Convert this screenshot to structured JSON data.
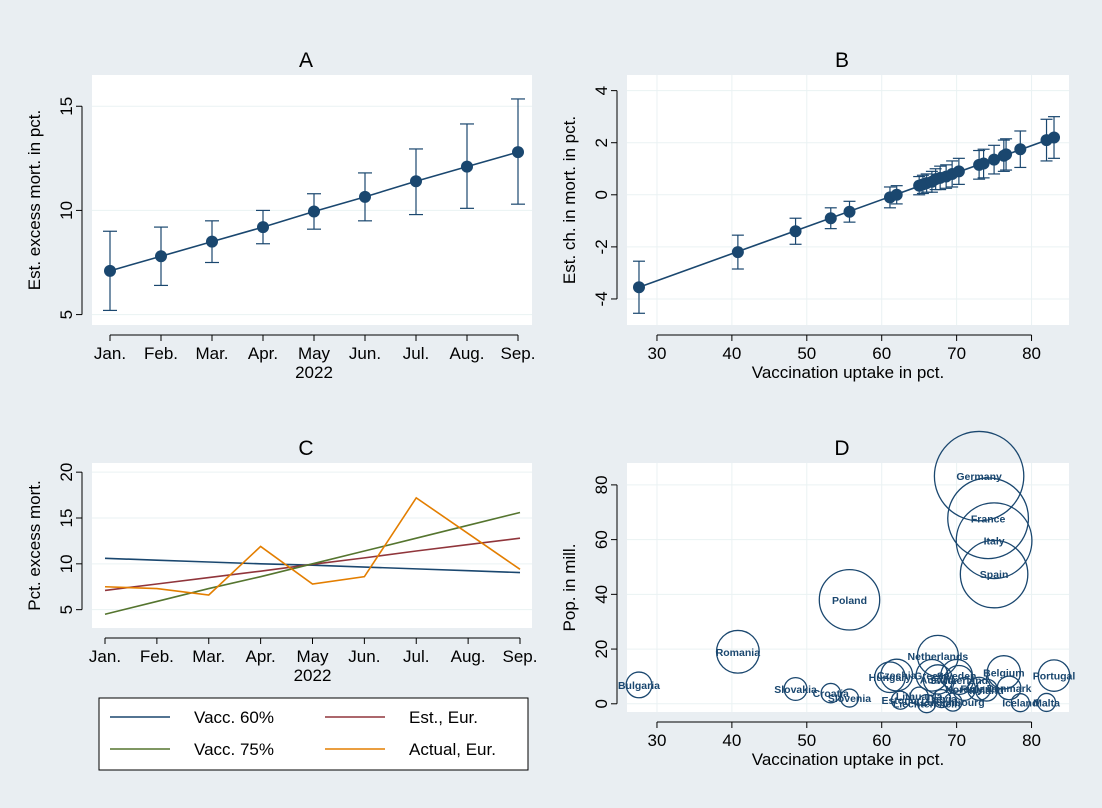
{
  "colors": {
    "background": "#e9eef2",
    "plot_bg": "#ffffff",
    "navy": "#1a476f",
    "maroon": "#90353b",
    "olive": "#55752f",
    "orange": "#e37e00",
    "axis": "#000000"
  },
  "chart_data": [
    {
      "id": "A",
      "type": "line",
      "title": "A",
      "xlabel": "2022",
      "ylabel": "Est. excess mort. in pct.",
      "categories": [
        "Jan.",
        "Feb.",
        "Mar.",
        "Apr.",
        "May",
        "Jun.",
        "Jul.",
        "Aug.",
        "Sep."
      ],
      "values": [
        7.1,
        7.8,
        8.5,
        9.2,
        9.95,
        10.65,
        11.4,
        12.1,
        12.8
      ],
      "ci_low": [
        5.2,
        6.4,
        7.5,
        8.4,
        9.1,
        9.5,
        9.8,
        10.1,
        10.3
      ],
      "ci_high": [
        9.0,
        9.2,
        9.5,
        10.0,
        10.8,
        11.8,
        12.95,
        14.15,
        15.35
      ],
      "ylim": [
        4.5,
        16.5
      ],
      "yticks": [
        5,
        10,
        15
      ],
      "grid": true
    },
    {
      "id": "B",
      "type": "scatter",
      "title": "B",
      "xlabel": "Vaccination uptake in pct.",
      "ylabel": "Est. ch. in mort. in pct.",
      "x": [
        27.6,
        40.8,
        48.5,
        53.2,
        55.7,
        61.1,
        62.0,
        65.0,
        65.5,
        66.0,
        66.7,
        67.2,
        67.8,
        68.6,
        69.4,
        70.3,
        73.0,
        73.6,
        75.0,
        76.3,
        76.6,
        78.5,
        82.0,
        83.0
      ],
      "values": [
        -3.55,
        -2.2,
        -1.4,
        -0.9,
        -0.65,
        -0.1,
        0.0,
        0.35,
        0.4,
        0.45,
        0.5,
        0.6,
        0.65,
        0.7,
        0.8,
        0.9,
        1.15,
        1.2,
        1.35,
        1.5,
        1.55,
        1.75,
        2.1,
        2.2
      ],
      "ci_low": [
        -4.55,
        -2.85,
        -1.9,
        -1.3,
        -1.05,
        -0.5,
        -0.35,
        0.0,
        0.05,
        0.1,
        0.1,
        0.2,
        0.2,
        0.25,
        0.3,
        0.4,
        0.6,
        0.65,
        0.8,
        0.9,
        0.95,
        1.05,
        1.3,
        1.4
      ],
      "ci_high": [
        -2.55,
        -1.55,
        -0.9,
        -0.5,
        -0.25,
        0.3,
        0.35,
        0.7,
        0.75,
        0.8,
        0.9,
        1.0,
        1.1,
        1.15,
        1.3,
        1.4,
        1.7,
        1.75,
        1.9,
        2.1,
        2.15,
        2.45,
        2.9,
        3.0
      ],
      "fit": [
        [
          27.6,
          -3.55
        ],
        [
          83.0,
          2.2
        ]
      ],
      "xlim": [
        26,
        85
      ],
      "ylim": [
        -5,
        4.6
      ],
      "xticks": [
        30,
        40,
        50,
        60,
        70,
        80
      ],
      "yticks": [
        -4,
        -2,
        0,
        2,
        4
      ],
      "grid": true
    },
    {
      "id": "C",
      "type": "line",
      "title": "C",
      "xlabel": "2022",
      "ylabel": "Pct. excess mort.",
      "categories": [
        "Jan.",
        "Feb.",
        "Mar.",
        "Apr.",
        "May",
        "Jun.",
        "Jul.",
        "Aug.",
        "Sep."
      ],
      "series": [
        {
          "name": "Vacc. 60%",
          "color": "#1a476f",
          "values": [
            10.6,
            10.4,
            10.2,
            10.0,
            9.85,
            9.65,
            9.45,
            9.25,
            9.05
          ]
        },
        {
          "name": "Est., Eur.",
          "color": "#90353b",
          "values": [
            7.1,
            7.8,
            8.5,
            9.2,
            9.95,
            10.65,
            11.4,
            12.1,
            12.8
          ]
        },
        {
          "name": "Vacc. 75%",
          "color": "#55752f",
          "values": [
            4.5,
            5.9,
            7.3,
            8.6,
            10.0,
            11.4,
            12.8,
            14.2,
            15.6
          ]
        },
        {
          "name": "Actual, Eur.",
          "color": "#e37e00",
          "values": [
            7.5,
            7.3,
            6.6,
            11.9,
            7.8,
            8.6,
            17.2,
            13.3,
            9.4
          ]
        }
      ],
      "ylim": [
        3,
        21
      ],
      "yticks": [
        5,
        10,
        15,
        20
      ],
      "grid": true,
      "legend_position": "bottom"
    },
    {
      "id": "D",
      "type": "scatter",
      "title": "D",
      "xlabel": "Vaccination uptake in pct.",
      "ylabel": "Pop. in mill.",
      "xlim": [
        26,
        85
      ],
      "ylim": [
        -3,
        88
      ],
      "xticks": [
        30,
        40,
        50,
        60,
        70,
        80
      ],
      "yticks": [
        0,
        20,
        40,
        60,
        80
      ],
      "grid": true,
      "points": [
        {
          "label": "Bulgaria",
          "x": 27.6,
          "y": 6.9
        },
        {
          "label": "Romania",
          "x": 40.8,
          "y": 19.0
        },
        {
          "label": "Slovakia",
          "x": 48.5,
          "y": 5.4
        },
        {
          "label": "Croatia",
          "x": 53.2,
          "y": 3.9
        },
        {
          "label": "Slovenia",
          "x": 55.7,
          "y": 2.1
        },
        {
          "label": "Poland",
          "x": 55.7,
          "y": 38.0
        },
        {
          "label": "Hungary",
          "x": 61.1,
          "y": 9.7
        },
        {
          "label": "Czechia",
          "x": 62.0,
          "y": 10.5
        },
        {
          "label": "Estonia",
          "x": 62.5,
          "y": 1.3
        },
        {
          "label": "Lithuania",
          "x": 65.0,
          "y": 2.8
        },
        {
          "label": "Liechtenstein",
          "x": 66.0,
          "y": 0.04
        },
        {
          "label": "Greece",
          "x": 66.7,
          "y": 10.4
        },
        {
          "label": "Netherlands",
          "x": 67.5,
          "y": 17.5
        },
        {
          "label": "Austria",
          "x": 67.5,
          "y": 8.9
        },
        {
          "label": "Latvia",
          "x": 68.0,
          "y": 1.9
        },
        {
          "label": "Luxembourg",
          "x": 69.5,
          "y": 0.6
        },
        {
          "label": "Switzerland",
          "x": 70.3,
          "y": 8.7
        },
        {
          "label": "Norway",
          "x": 71.0,
          "y": 5.4
        },
        {
          "label": "Sweden",
          "x": 70.0,
          "y": 10.4
        },
        {
          "label": "Finland",
          "x": 73.0,
          "y": 5.5
        },
        {
          "label": "Ireland",
          "x": 74.0,
          "y": 5.0
        },
        {
          "label": "Germany",
          "x": 73.0,
          "y": 83.2
        },
        {
          "label": "France",
          "x": 74.2,
          "y": 67.8
        },
        {
          "label": "Italy",
          "x": 75.0,
          "y": 59.6
        },
        {
          "label": "Spain",
          "x": 75.0,
          "y": 47.4
        },
        {
          "label": "Denmark",
          "x": 77.0,
          "y": 5.8
        },
        {
          "label": "Belgium",
          "x": 76.3,
          "y": 11.5
        },
        {
          "label": "Iceland",
          "x": 78.5,
          "y": 0.4
        },
        {
          "label": "Malta",
          "x": 82.0,
          "y": 0.5
        },
        {
          "label": "Portugal",
          "x": 83.0,
          "y": 10.3
        }
      ]
    }
  ]
}
